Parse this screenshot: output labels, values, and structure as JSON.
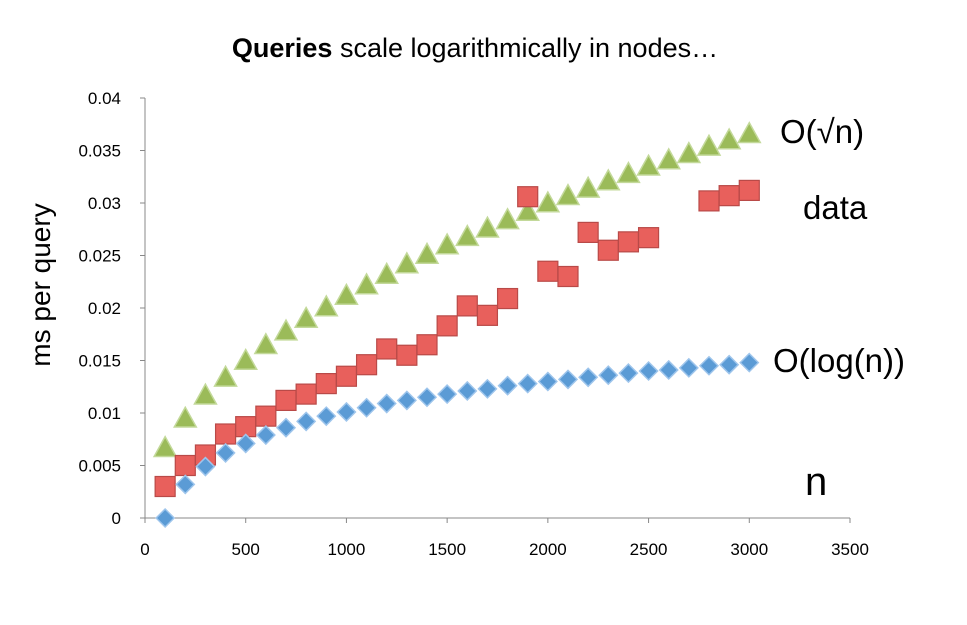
{
  "chart_data": {
    "type": "scatter",
    "title_bold": "Queries",
    "title_rest": " scale logarithmically in nodes…",
    "xlabel": "",
    "ylabel": "ms per query",
    "xlim": [
      0,
      3500
    ],
    "ylim": [
      0,
      0.04
    ],
    "x_ticks": [
      "0",
      "500",
      "1000",
      "1500",
      "2000",
      "2500",
      "3000",
      "3500"
    ],
    "y_ticks": [
      "0",
      "0.005",
      "0.01",
      "0.015",
      "0.02",
      "0.025",
      "0.03",
      "0.035",
      "0.04"
    ],
    "grid": false,
    "series": [
      {
        "key": "sqrt",
        "label": "O(√n)",
        "marker": "triangle",
        "color": "#9bbb59",
        "edge": "#c3d99a",
        "points": [
          [
            100,
            0.0067
          ],
          [
            200,
            0.0095
          ],
          [
            300,
            0.0117
          ],
          [
            400,
            0.0134
          ],
          [
            500,
            0.015
          ],
          [
            600,
            0.0165
          ],
          [
            700,
            0.0178
          ],
          [
            800,
            0.019
          ],
          [
            900,
            0.0201
          ],
          [
            1000,
            0.0212
          ],
          [
            1100,
            0.0222
          ],
          [
            1200,
            0.0232
          ],
          [
            1300,
            0.0242
          ],
          [
            1400,
            0.0251
          ],
          [
            1500,
            0.026
          ],
          [
            1600,
            0.0268
          ],
          [
            1700,
            0.0276
          ],
          [
            1800,
            0.0284
          ],
          [
            1900,
            0.0292
          ],
          [
            2000,
            0.03
          ],
          [
            2100,
            0.0307
          ],
          [
            2200,
            0.0314
          ],
          [
            2300,
            0.0321
          ],
          [
            2400,
            0.0328
          ],
          [
            2500,
            0.0335
          ],
          [
            2600,
            0.0341
          ],
          [
            2700,
            0.0347
          ],
          [
            2800,
            0.0354
          ],
          [
            2900,
            0.036
          ],
          [
            3000,
            0.0366
          ]
        ]
      },
      {
        "key": "data",
        "label": "data",
        "marker": "square",
        "color": "#e8605c",
        "edge": "#b94a48",
        "points": [
          [
            100,
            0.003
          ],
          [
            200,
            0.005
          ],
          [
            300,
            0.006
          ],
          [
            400,
            0.008
          ],
          [
            500,
            0.0087
          ],
          [
            600,
            0.0097
          ],
          [
            700,
            0.0112
          ],
          [
            800,
            0.0118
          ],
          [
            900,
            0.0128
          ],
          [
            1000,
            0.0135
          ],
          [
            1100,
            0.0146
          ],
          [
            1200,
            0.0161
          ],
          [
            1300,
            0.0155
          ],
          [
            1400,
            0.0165
          ],
          [
            1500,
            0.0183
          ],
          [
            1600,
            0.0202
          ],
          [
            1700,
            0.0193
          ],
          [
            1800,
            0.0209
          ],
          [
            1900,
            0.0306
          ],
          [
            2000,
            0.0235
          ],
          [
            2100,
            0.023
          ],
          [
            2200,
            0.0272
          ],
          [
            2300,
            0.0255
          ],
          [
            2400,
            0.0263
          ],
          [
            2500,
            0.0267
          ],
          [
            2800,
            0.0302
          ],
          [
            2900,
            0.0307
          ],
          [
            3000,
            0.0312
          ]
        ]
      },
      {
        "key": "log",
        "label": "O(log(n))",
        "marker": "diamond",
        "color": "#5b9bd5",
        "edge": "#9ec5ec",
        "points": [
          [
            100,
            0.0
          ],
          [
            200,
            0.0032
          ],
          [
            300,
            0.0049
          ],
          [
            400,
            0.0062
          ],
          [
            500,
            0.0071
          ],
          [
            600,
            0.0079
          ],
          [
            700,
            0.0086
          ],
          [
            800,
            0.0092
          ],
          [
            900,
            0.0097
          ],
          [
            1000,
            0.0101
          ],
          [
            1100,
            0.0105
          ],
          [
            1200,
            0.0109
          ],
          [
            1300,
            0.0112
          ],
          [
            1400,
            0.0115
          ],
          [
            1500,
            0.0118
          ],
          [
            1600,
            0.0121
          ],
          [
            1700,
            0.0123
          ],
          [
            1800,
            0.0126
          ],
          [
            1900,
            0.0128
          ],
          [
            2000,
            0.013
          ],
          [
            2100,
            0.0132
          ],
          [
            2200,
            0.0134
          ],
          [
            2300,
            0.0136
          ],
          [
            2400,
            0.0138
          ],
          [
            2500,
            0.014
          ],
          [
            2600,
            0.0141
          ],
          [
            2700,
            0.0143
          ],
          [
            2800,
            0.0145
          ],
          [
            2900,
            0.0146
          ],
          [
            3000,
            0.0148
          ]
        ]
      },
      {
        "key": "n",
        "label": "n",
        "marker": "none",
        "color": "#000000",
        "points": []
      }
    ]
  }
}
